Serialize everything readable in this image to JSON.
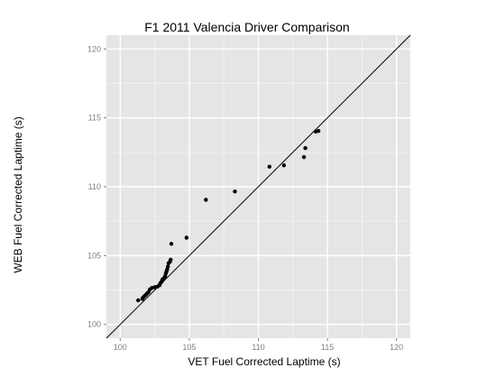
{
  "chart_data": {
    "type": "scatter",
    "title": "F1 2011 Valencia Driver Comparison",
    "xlabel": "VET Fuel Corrected Laptime (s)",
    "ylabel": "WEB Fuel Corrected Laptime (s)",
    "xlim": [
      99,
      121
    ],
    "ylim": [
      99,
      121
    ],
    "xticks": [
      100,
      105,
      110,
      115,
      120
    ],
    "yticks": [
      100,
      105,
      110,
      115,
      120
    ],
    "grid": true,
    "background": "#e5e5e5",
    "grid_color": "#ffffff",
    "point_color": "#000000",
    "reference_line": {
      "type": "y=x",
      "color": "#000000"
    },
    "points": [
      {
        "x": 101.3,
        "y": 101.75
      },
      {
        "x": 101.6,
        "y": 101.85
      },
      {
        "x": 101.65,
        "y": 101.95
      },
      {
        "x": 101.75,
        "y": 102.05
      },
      {
        "x": 101.85,
        "y": 102.15
      },
      {
        "x": 101.95,
        "y": 102.25
      },
      {
        "x": 102.05,
        "y": 102.35
      },
      {
        "x": 102.15,
        "y": 102.55
      },
      {
        "x": 102.3,
        "y": 102.65
      },
      {
        "x": 102.5,
        "y": 102.7
      },
      {
        "x": 102.7,
        "y": 102.75
      },
      {
        "x": 102.85,
        "y": 102.85
      },
      {
        "x": 102.9,
        "y": 103.0
      },
      {
        "x": 103.0,
        "y": 103.1
      },
      {
        "x": 103.05,
        "y": 103.25
      },
      {
        "x": 103.15,
        "y": 103.35
      },
      {
        "x": 103.25,
        "y": 103.5
      },
      {
        "x": 103.3,
        "y": 103.7
      },
      {
        "x": 103.35,
        "y": 103.85
      },
      {
        "x": 103.4,
        "y": 104.0
      },
      {
        "x": 103.45,
        "y": 104.2
      },
      {
        "x": 103.5,
        "y": 104.45
      },
      {
        "x": 103.6,
        "y": 104.55
      },
      {
        "x": 103.65,
        "y": 104.7
      },
      {
        "x": 103.7,
        "y": 105.85
      },
      {
        "x": 104.8,
        "y": 106.3
      },
      {
        "x": 106.2,
        "y": 109.05
      },
      {
        "x": 108.3,
        "y": 109.65
      },
      {
        "x": 110.8,
        "y": 111.45
      },
      {
        "x": 111.85,
        "y": 111.55
      },
      {
        "x": 113.3,
        "y": 112.15
      },
      {
        "x": 113.4,
        "y": 112.8
      },
      {
        "x": 114.15,
        "y": 114.0
      },
      {
        "x": 114.35,
        "y": 114.05
      }
    ]
  }
}
